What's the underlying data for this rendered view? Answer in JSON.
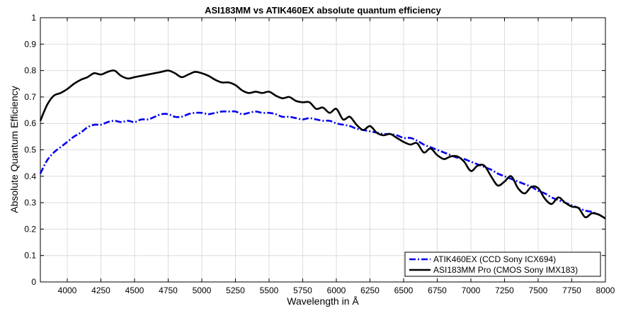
{
  "chart_data": {
    "type": "line",
    "title": "ASI183MM vs ATIK460EX absolute quantum efficiency",
    "xlabel": "Wavelength in Å",
    "ylabel": "Absolute Quantum Efficiency",
    "xlim": [
      3800,
      8000
    ],
    "ylim": [
      0,
      1
    ],
    "xticks": [
      4000,
      4250,
      4500,
      4750,
      5000,
      5250,
      5500,
      5750,
      6000,
      6250,
      6500,
      6750,
      7000,
      7250,
      7500,
      7750,
      8000
    ],
    "yticks": [
      0,
      0.1,
      0.2,
      0.3,
      0.4,
      0.5,
      0.6,
      0.7,
      0.8,
      0.9,
      1
    ],
    "grid": true,
    "legend_position": "bottom-right",
    "series": [
      {
        "name": "ATIK460EX (CCD Sony ICX694)",
        "color": "#0000ee",
        "dash": "dash-dot",
        "x": [
          3800,
          3850,
          3900,
          3950,
          4000,
          4050,
          4100,
          4150,
          4200,
          4250,
          4300,
          4350,
          4400,
          4450,
          4500,
          4550,
          4600,
          4650,
          4700,
          4750,
          4800,
          4850,
          4900,
          4950,
          5000,
          5050,
          5100,
          5150,
          5200,
          5250,
          5300,
          5350,
          5400,
          5450,
          5500,
          5550,
          5600,
          5650,
          5700,
          5750,
          5800,
          5850,
          5900,
          5950,
          6000,
          6050,
          6100,
          6150,
          6200,
          6250,
          6300,
          6350,
          6400,
          6450,
          6500,
          6550,
          6600,
          6650,
          6700,
          6750,
          6800,
          6850,
          6900,
          6950,
          7000,
          7050,
          7100,
          7150,
          7200,
          7250,
          7300,
          7350,
          7400,
          7450,
          7500,
          7550,
          7600,
          7650,
          7700,
          7750,
          7800,
          7850,
          7900,
          7950,
          8000
        ],
        "y": [
          0.41,
          0.46,
          0.49,
          0.51,
          0.53,
          0.55,
          0.565,
          0.585,
          0.595,
          0.595,
          0.605,
          0.61,
          0.605,
          0.61,
          0.605,
          0.615,
          0.615,
          0.625,
          0.635,
          0.635,
          0.625,
          0.625,
          0.635,
          0.64,
          0.64,
          0.635,
          0.64,
          0.645,
          0.645,
          0.645,
          0.635,
          0.64,
          0.645,
          0.64,
          0.64,
          0.635,
          0.625,
          0.625,
          0.62,
          0.615,
          0.62,
          0.615,
          0.61,
          0.61,
          0.6,
          0.595,
          0.59,
          0.58,
          0.575,
          0.57,
          0.565,
          0.56,
          0.56,
          0.555,
          0.545,
          0.545,
          0.535,
          0.52,
          0.51,
          0.5,
          0.49,
          0.48,
          0.47,
          0.465,
          0.455,
          0.445,
          0.435,
          0.425,
          0.41,
          0.4,
          0.39,
          0.38,
          0.37,
          0.36,
          0.345,
          0.335,
          0.32,
          0.31,
          0.3,
          0.29,
          0.28,
          0.27,
          0.265,
          0.255,
          0.24
        ]
      },
      {
        "name": "ASI183MM Pro (CMOS Sony IMX183)",
        "color": "#000000",
        "dash": "solid",
        "x": [
          3800,
          3850,
          3900,
          3950,
          4000,
          4050,
          4100,
          4150,
          4200,
          4250,
          4300,
          4350,
          4400,
          4450,
          4500,
          4550,
          4600,
          4650,
          4700,
          4750,
          4800,
          4850,
          4900,
          4950,
          5000,
          5050,
          5100,
          5150,
          5200,
          5250,
          5300,
          5350,
          5400,
          5450,
          5500,
          5550,
          5600,
          5650,
          5700,
          5750,
          5800,
          5850,
          5900,
          5950,
          6000,
          6050,
          6100,
          6150,
          6200,
          6250,
          6300,
          6350,
          6400,
          6450,
          6500,
          6550,
          6600,
          6650,
          6700,
          6750,
          6800,
          6850,
          6900,
          6950,
          7000,
          7050,
          7100,
          7150,
          7200,
          7250,
          7300,
          7350,
          7400,
          7450,
          7500,
          7550,
          7600,
          7650,
          7700,
          7750,
          7800,
          7850,
          7900,
          7950,
          8000
        ],
        "y": [
          0.61,
          0.67,
          0.705,
          0.715,
          0.73,
          0.75,
          0.765,
          0.775,
          0.79,
          0.785,
          0.795,
          0.8,
          0.78,
          0.77,
          0.775,
          0.78,
          0.785,
          0.79,
          0.795,
          0.8,
          0.79,
          0.775,
          0.785,
          0.795,
          0.79,
          0.78,
          0.765,
          0.755,
          0.755,
          0.745,
          0.725,
          0.715,
          0.72,
          0.715,
          0.72,
          0.705,
          0.695,
          0.7,
          0.685,
          0.68,
          0.68,
          0.655,
          0.66,
          0.64,
          0.655,
          0.615,
          0.625,
          0.595,
          0.575,
          0.59,
          0.565,
          0.555,
          0.56,
          0.545,
          0.53,
          0.52,
          0.525,
          0.49,
          0.505,
          0.48,
          0.465,
          0.475,
          0.475,
          0.455,
          0.42,
          0.44,
          0.44,
          0.4,
          0.365,
          0.38,
          0.4,
          0.355,
          0.335,
          0.36,
          0.355,
          0.315,
          0.295,
          0.32,
          0.3,
          0.285,
          0.28,
          0.245,
          0.26,
          0.255,
          0.24
        ]
      }
    ]
  }
}
